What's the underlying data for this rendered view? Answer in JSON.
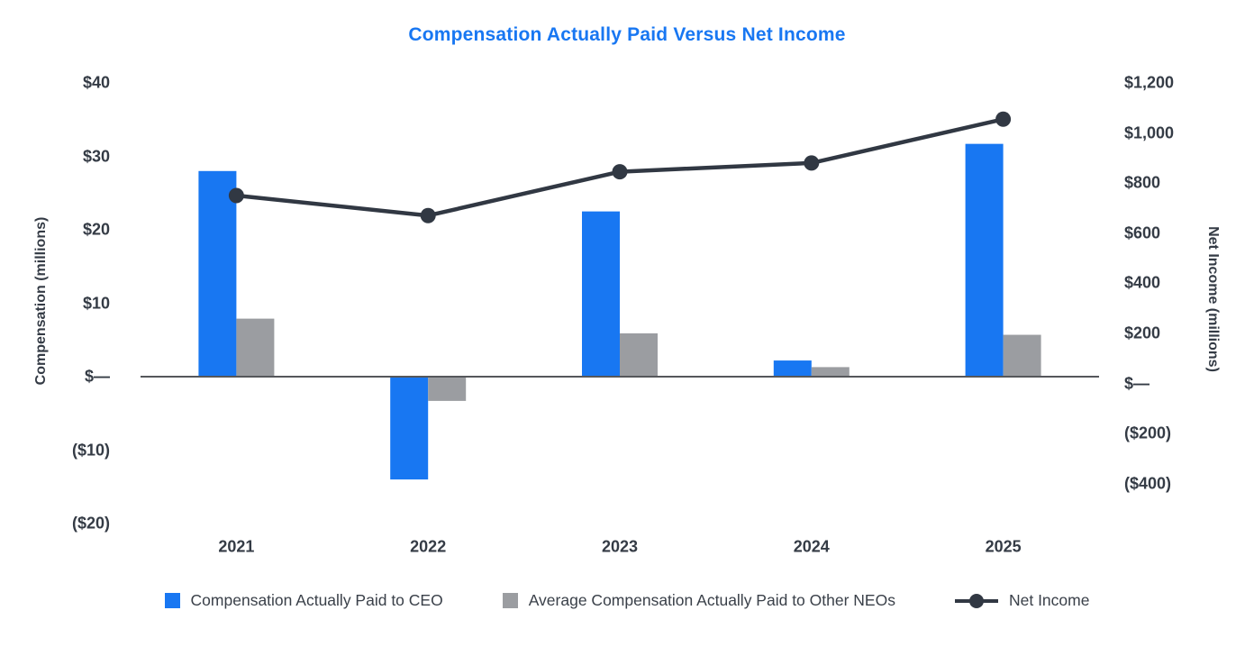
{
  "title": "Compensation Actually Paid Versus Net Income",
  "colors": {
    "ceo_bar": "#1877F2",
    "neo_bar": "#9B9DA1",
    "net_income_line": "#313843",
    "title_text": "#1877F2",
    "axis_text": "#343B45",
    "axis_line": "#55575B"
  },
  "axes": {
    "left": {
      "title": "Compensation (millions)",
      "ticks": [
        {
          "value": 40,
          "label": "$40"
        },
        {
          "value": 30,
          "label": "$30"
        },
        {
          "value": 20,
          "label": "$20"
        },
        {
          "value": 10,
          "label": "$10"
        },
        {
          "value": 0,
          "label": "$—"
        },
        {
          "value": -10,
          "label": "($10)"
        },
        {
          "value": -20,
          "label": "($20)"
        }
      ]
    },
    "right": {
      "title": "Net Income (millions)",
      "ticks": [
        {
          "value": 1200,
          "label": "$1,200"
        },
        {
          "value": 1000,
          "label": "$1,000"
        },
        {
          "value": 800,
          "label": "$800"
        },
        {
          "value": 600,
          "label": "$600"
        },
        {
          "value": 400,
          "label": "$400"
        },
        {
          "value": 200,
          "label": "$200"
        },
        {
          "value": 0,
          "label": "$—"
        },
        {
          "value": -200,
          "label": "($200)"
        },
        {
          "value": -400,
          "label": "($400)"
        }
      ]
    }
  },
  "chart_data": {
    "type": "combo-bar-line",
    "title": "Compensation Actually Paid Versus Net Income",
    "categories": [
      "2021",
      "2022",
      "2023",
      "2024",
      "2025"
    ],
    "series": [
      {
        "name": "Compensation Actually Paid to CEO",
        "type": "bar",
        "axis": "left",
        "color_key": "ceo_bar",
        "values": [
          28.0,
          -14.0,
          22.5,
          2.2,
          31.7
        ]
      },
      {
        "name": "Average Compensation Actually Paid to Other NEOs",
        "type": "bar",
        "axis": "left",
        "color_key": "neo_bar",
        "values": [
          7.9,
          -3.3,
          5.9,
          1.3,
          5.7
        ]
      },
      {
        "name": "Net Income",
        "type": "line",
        "axis": "right",
        "color_key": "net_income_line",
        "values": [
          750,
          670,
          845,
          880,
          1055
        ]
      }
    ],
    "left_ylabel": "Compensation (millions)",
    "right_ylabel": "Net Income (millions)",
    "left_ylim": [
      -20,
      40
    ],
    "right_ylim": [
      -400,
      1200
    ],
    "xlabel": "",
    "grid": false,
    "legend_position": "bottom"
  },
  "legend": [
    {
      "label": "Compensation Actually Paid to CEO",
      "marker": "square",
      "color_key": "ceo_bar"
    },
    {
      "label": "Average Compensation Actually Paid to Other NEOs",
      "marker": "square",
      "color_key": "neo_bar"
    },
    {
      "label": "Net Income",
      "marker": "line-dot",
      "color_key": "net_income_line"
    }
  ]
}
